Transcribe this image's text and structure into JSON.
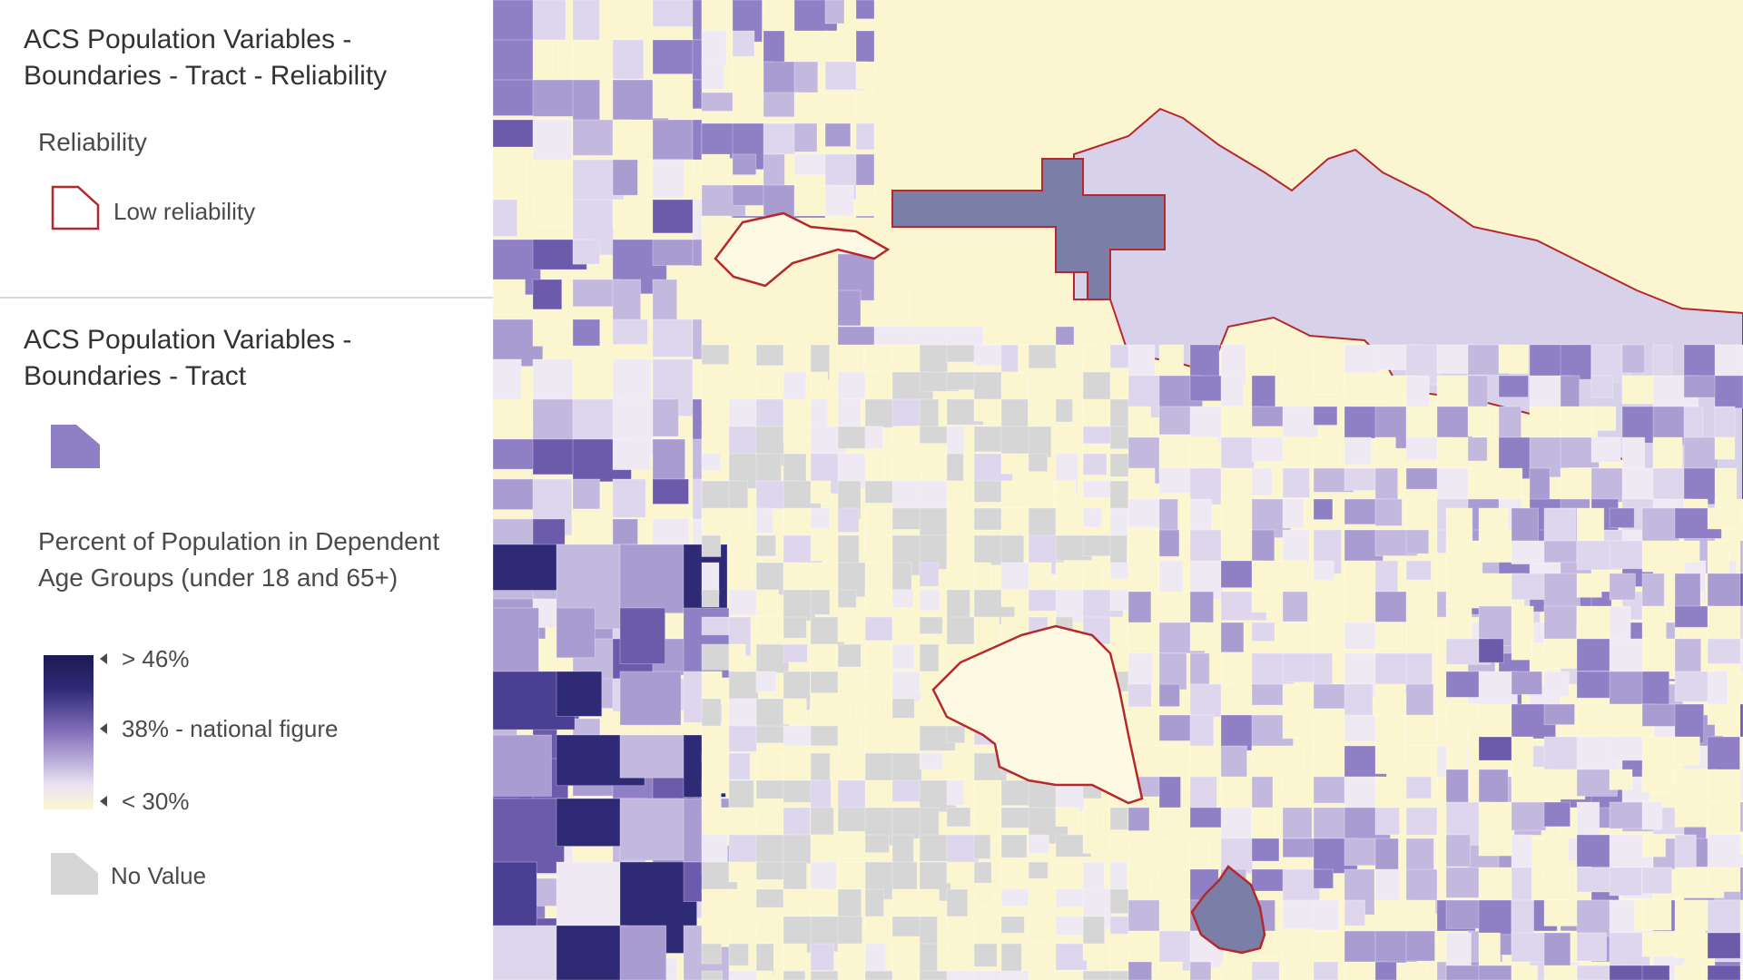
{
  "legend": {
    "layer1": {
      "title": "ACS Population Variables - Boundaries - Tract - Reliability",
      "field": "Reliability",
      "items": [
        {
          "label": "Low reliability",
          "stroke": "#b5282d"
        }
      ]
    },
    "layer2": {
      "title": "ACS Population Variables - Boundaries - Tract",
      "symbol_color": "#8f7fc4",
      "field": "Percent of Population in Dependent Age Groups (under 18 and 65+)",
      "ramp": {
        "colors": [
          "#1c1a52",
          "#2f2a75",
          "#7d6bb8",
          "#b8acd8",
          "#e9e3f2",
          "#fbf6cf"
        ],
        "stops": [
          {
            "label": "> 46%"
          },
          {
            "label": "38% - national figure"
          },
          {
            "label": "< 30%"
          }
        ]
      },
      "no_value": {
        "label": "No Value",
        "color": "#d6d6d6"
      }
    }
  },
  "map": {
    "background_color": "#fbf6cf",
    "low_reliability_stroke": "#b5282d",
    "no_value_color": "#d6d6d6"
  }
}
